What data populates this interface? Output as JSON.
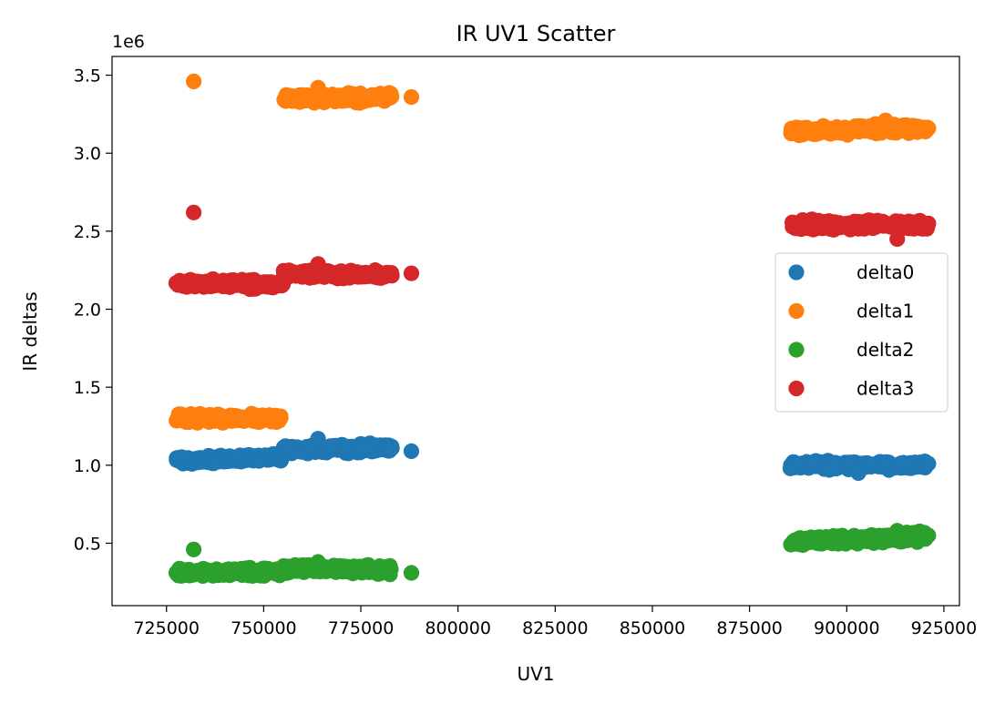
{
  "chart_data": {
    "type": "scatter",
    "title": "IR UV1 Scatter",
    "xlabel": "UV1",
    "ylabel": "IR deltas",
    "y_offset_label": "1e6",
    "xlim": [
      711000,
      929000
    ],
    "ylim": [
      100000,
      3620000
    ],
    "x_ticks": [
      725000,
      750000,
      775000,
      800000,
      825000,
      850000,
      875000,
      900000,
      925000
    ],
    "x_tick_labels": [
      "725000",
      "750000",
      "775000",
      "800000",
      "825000",
      "850000",
      "875000",
      "900000",
      "925000"
    ],
    "y_ticks": [
      500000,
      1000000,
      1500000,
      2000000,
      2500000,
      3000000,
      3500000
    ],
    "y_tick_labels": [
      "0.5",
      "1.0",
      "1.5",
      "2.0",
      "2.5",
      "3.0",
      "3.5"
    ],
    "grid": false,
    "legend_position": "center-right",
    "series": [
      {
        "name": "delta0",
        "color": "#1f77b4",
        "clusters": [
          {
            "x_range": [
              727500,
              755000
            ],
            "y_start": 1030000,
            "y_end": 1050000,
            "spread": 40000
          },
          {
            "x_range": [
              755000,
              783000
            ],
            "y_start": 1100000,
            "y_end": 1110000,
            "spread": 40000
          },
          {
            "x_range": [
              885500,
              921000
            ],
            "y_start": 1000000,
            "y_end": 1000000,
            "spread": 40000
          }
        ],
        "points": [
          [
            788000,
            1090000
          ],
          [
            764000,
            1170000
          ],
          [
            903000,
            950000
          ],
          [
            921000,
            1010000
          ],
          [
            885500,
            980000
          ]
        ]
      },
      {
        "name": "delta1",
        "color": "#ff7f0e",
        "clusters": [
          {
            "x_range": [
              727500,
              755000
            ],
            "y_start": 1300000,
            "y_end": 1300000,
            "spread": 40000
          },
          {
            "x_range": [
              755000,
              783000
            ],
            "y_start": 3350000,
            "y_end": 3360000,
            "spread": 40000
          },
          {
            "x_range": [
              885500,
              921000
            ],
            "y_start": 3140000,
            "y_end": 3160000,
            "spread": 40000
          }
        ],
        "points": [
          [
            732000,
            3460000
          ],
          [
            788000,
            3360000
          ],
          [
            764000,
            3420000
          ],
          [
            921000,
            3160000
          ],
          [
            910000,
            3210000
          ]
        ]
      },
      {
        "name": "delta2",
        "color": "#2ca02c",
        "clusters": [
          {
            "x_range": [
              727500,
              755000
            ],
            "y_start": 310000,
            "y_end": 320000,
            "spread": 40000
          },
          {
            "x_range": [
              755000,
              783000
            ],
            "y_start": 340000,
            "y_end": 330000,
            "spread": 40000
          },
          {
            "x_range": [
              885500,
              921000
            ],
            "y_start": 510000,
            "y_end": 540000,
            "spread": 45000
          }
        ],
        "points": [
          [
            732000,
            460000
          ],
          [
            788000,
            310000
          ],
          [
            764000,
            380000
          ],
          [
            913000,
            580000
          ],
          [
            921000,
            550000
          ]
        ]
      },
      {
        "name": "delta3",
        "color": "#d62728",
        "clusters": [
          {
            "x_range": [
              727500,
              755000
            ],
            "y_start": 2170000,
            "y_end": 2160000,
            "spread": 40000
          },
          {
            "x_range": [
              755000,
              783000
            ],
            "y_start": 2230000,
            "y_end": 2220000,
            "spread": 40000
          },
          {
            "x_range": [
              885500,
              921000
            ],
            "y_start": 2540000,
            "y_end": 2540000,
            "spread": 45000
          }
        ],
        "points": [
          [
            732000,
            2620000
          ],
          [
            788000,
            2230000
          ],
          [
            764000,
            2290000
          ],
          [
            913000,
            2450000
          ],
          [
            921000,
            2550000
          ]
        ]
      }
    ]
  }
}
